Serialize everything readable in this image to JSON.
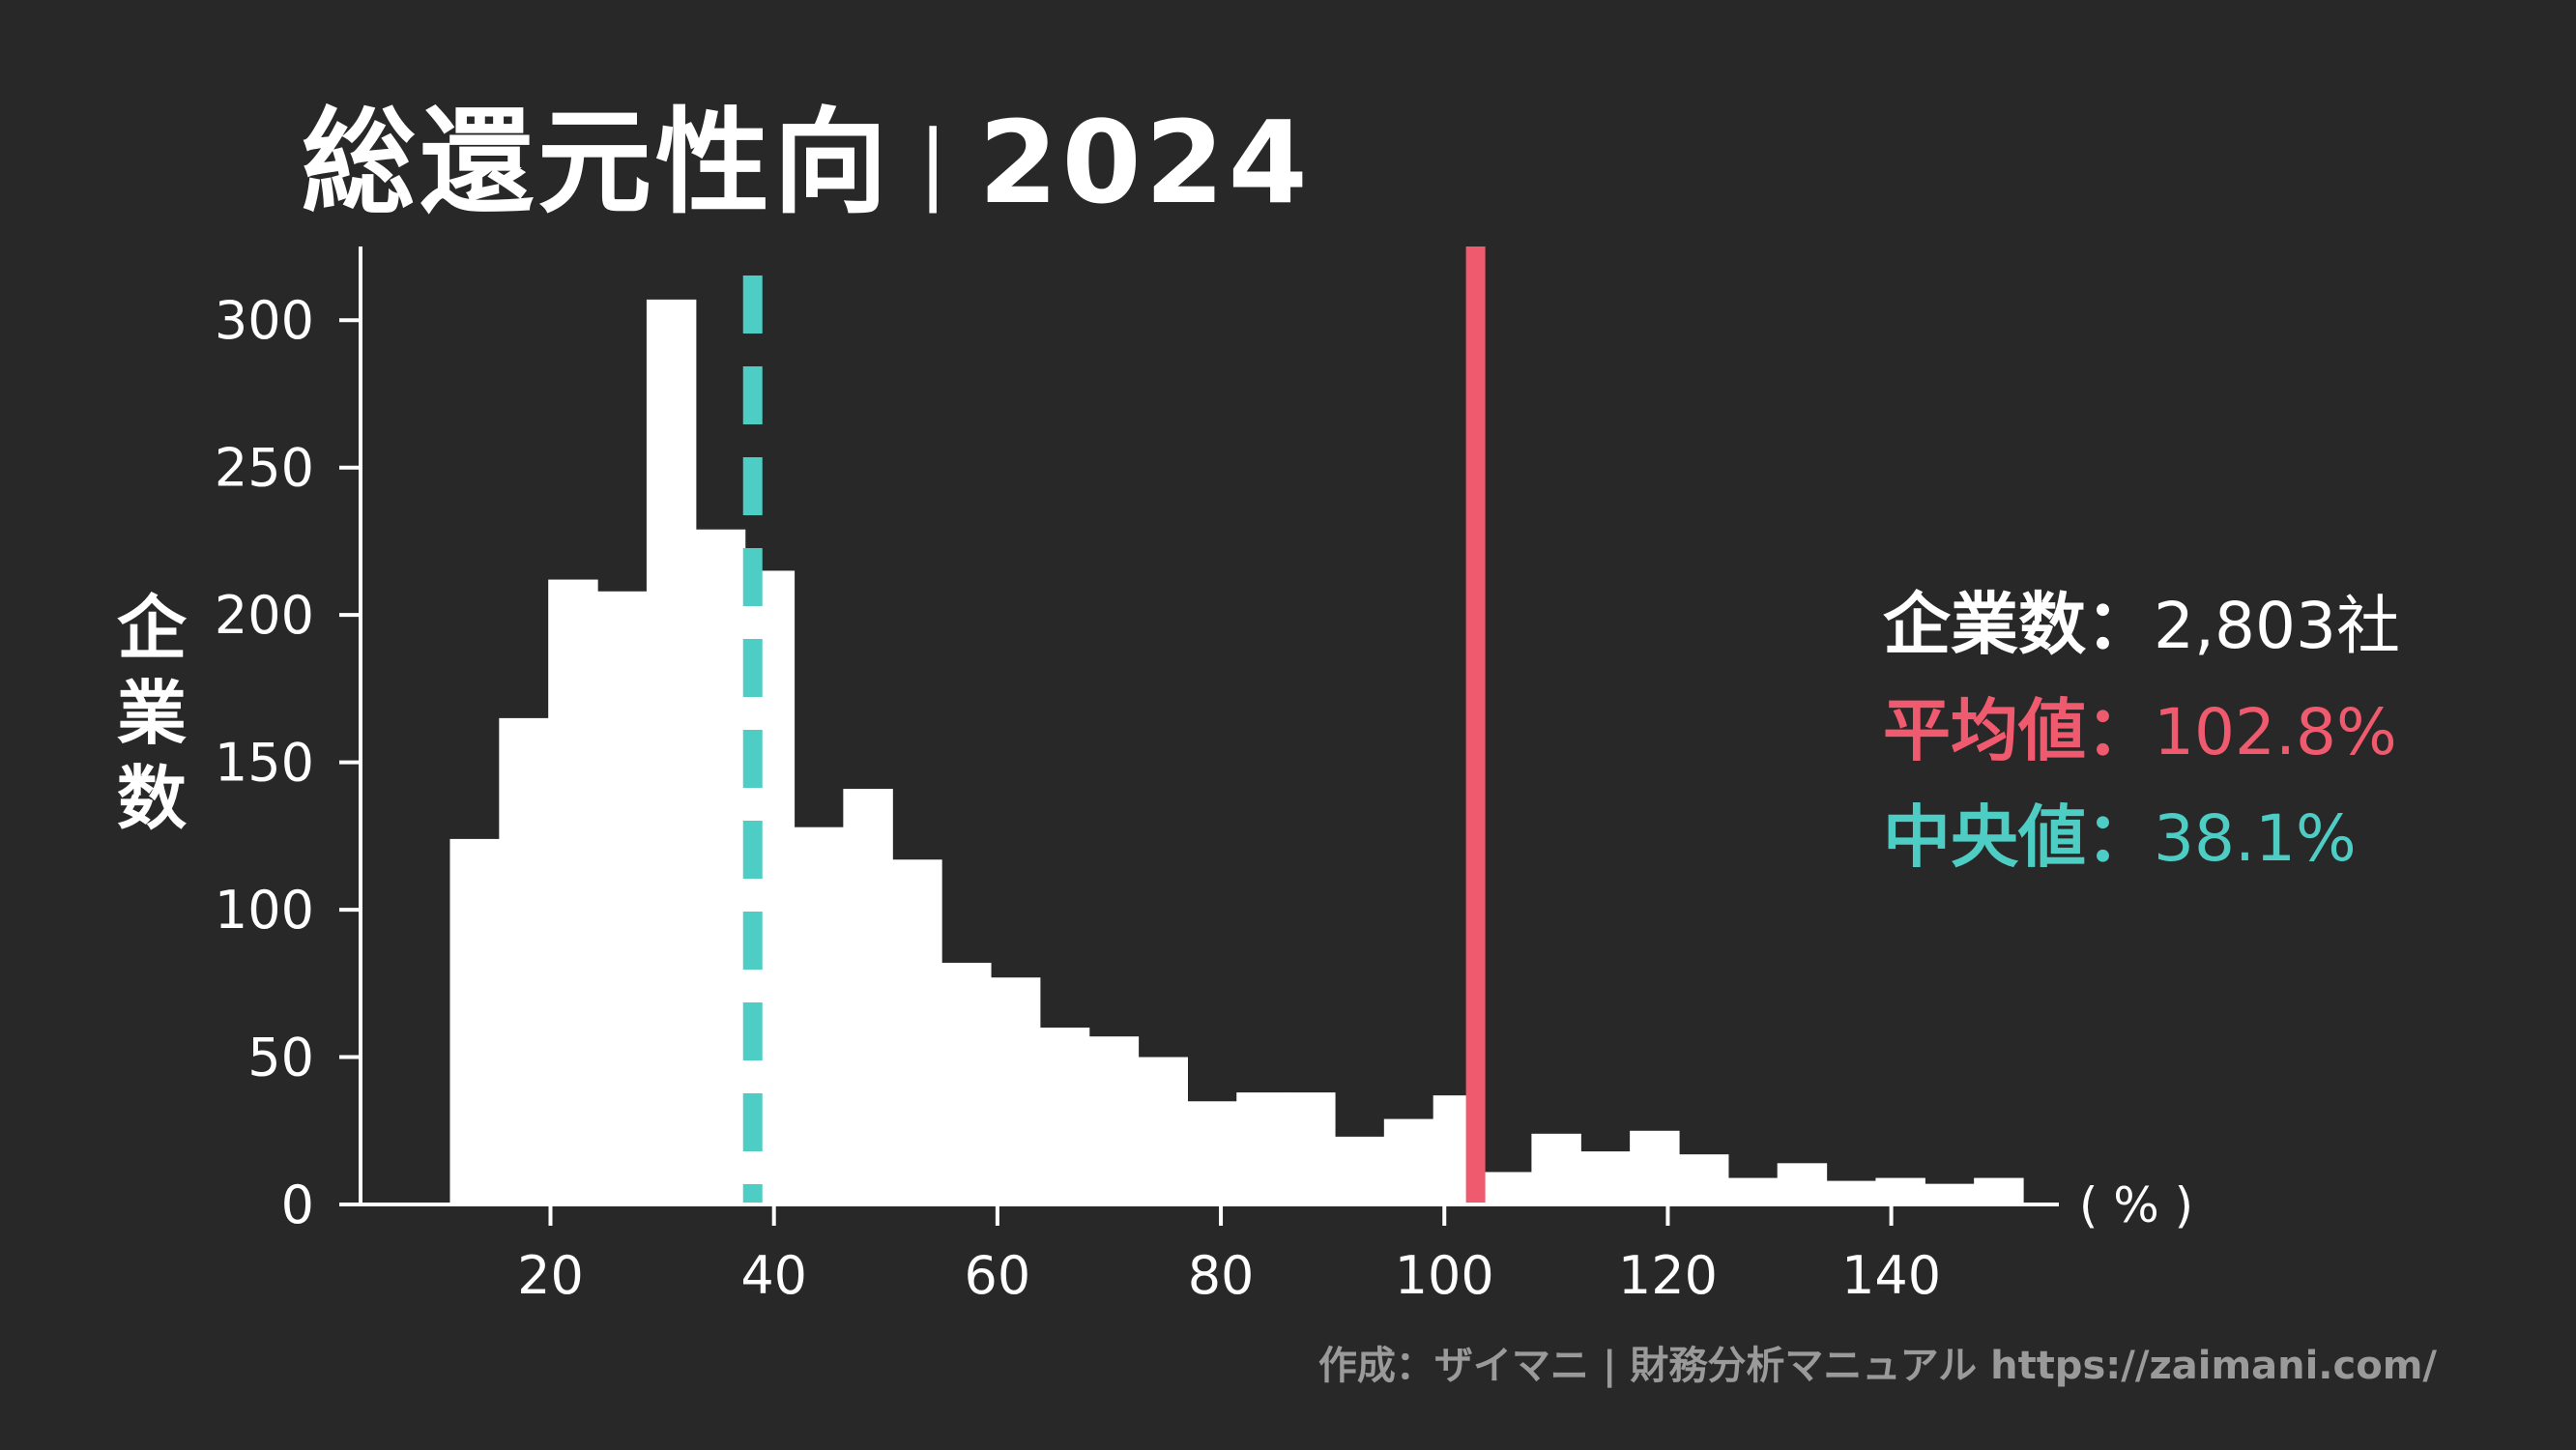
{
  "header": {
    "title": "総還元性向",
    "separator": "|",
    "year": "2024"
  },
  "stats": {
    "count_label": "企業数：",
    "count_value": "2,803社",
    "mean_label": "平均値：",
    "mean_value": "102.8%",
    "median_label": "中央値：",
    "median_value": "38.1%"
  },
  "credit": "作成：ザイマニ | 財務分析マニュアル https://zaimani.com/",
  "colors": {
    "background": "#282828",
    "bars": "#ffffff",
    "mean": "#f05a6e",
    "median": "#4ecdc4",
    "credit": "#9a9a9a"
  },
  "chart_data": {
    "type": "bar",
    "title": "総還元性向 | 2024",
    "ylabel": "企業数",
    "xunit": "( % )",
    "xlim": [
      3,
      155
    ],
    "ylim": [
      0,
      325
    ],
    "xticks": [
      20,
      40,
      60,
      80,
      100,
      120,
      140
    ],
    "yticks": [
      0,
      50,
      100,
      150,
      200,
      250,
      300
    ],
    "bin_width": 4.4,
    "bin_start": 11,
    "values": [
      124,
      165,
      212,
      208,
      307,
      229,
      215,
      128,
      141,
      117,
      82,
      77,
      60,
      57,
      50,
      35,
      38,
      38,
      23,
      29,
      37,
      11,
      24,
      18,
      25,
      17,
      9,
      14,
      8,
      9,
      7,
      9
    ],
    "mean": 102.8,
    "median": 38.1,
    "grid": false
  }
}
